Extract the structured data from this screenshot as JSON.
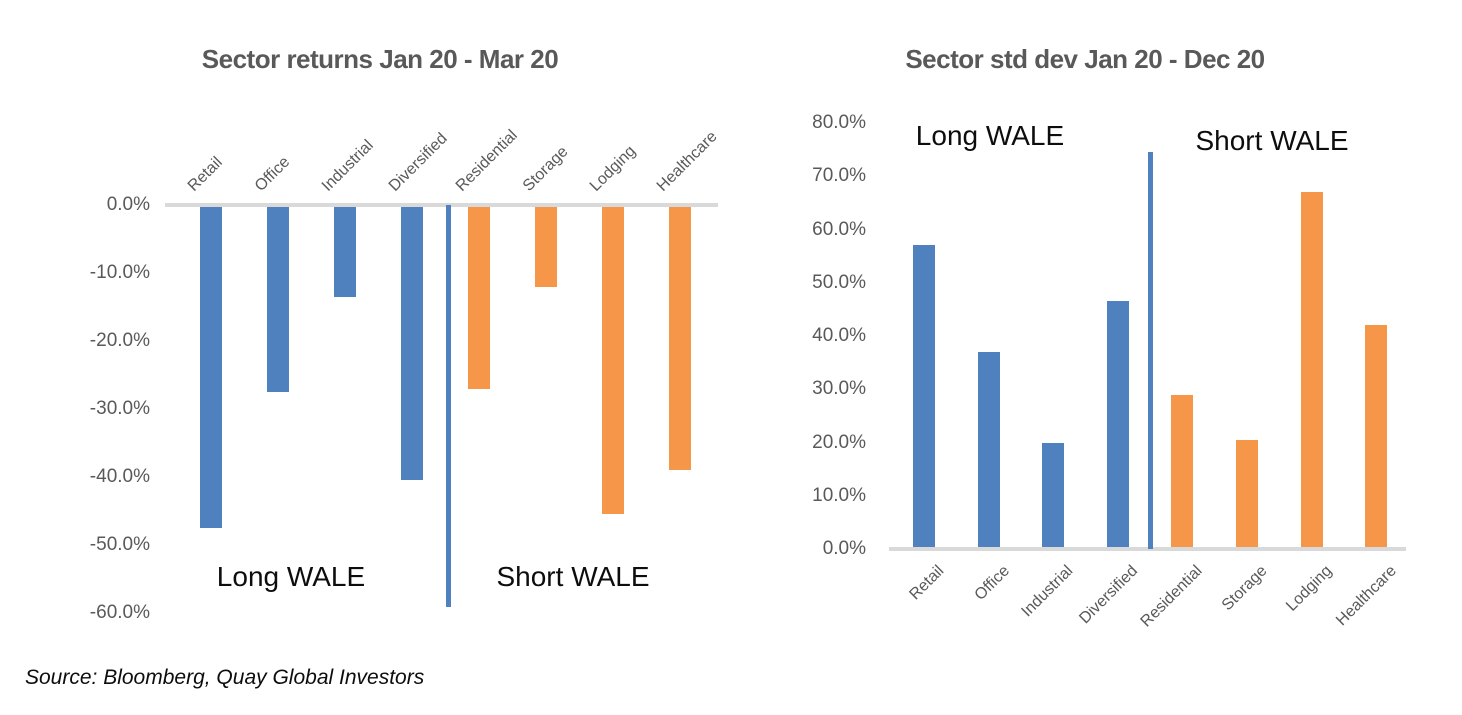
{
  "page": {
    "background": "#FFFFFF"
  },
  "source_note": "Source: Bloomberg, Quay Global Investors",
  "colors": {
    "long_wale_bar": "#4E81BD",
    "short_wale_bar": "#F69648",
    "divider_line": "#4E81BD",
    "axis_line": "#D9D9D9",
    "axis_text": "#595959",
    "title_text": "#595959",
    "annotation_text": "#0D0D0D"
  },
  "chart_data": [
    {
      "id": "returns",
      "type": "bar",
      "title": "Sector returns Jan 20 - Mar 20",
      "categories": [
        "Retail",
        "Office",
        "Industrial",
        "Diversified",
        "Residential",
        "Storage",
        "Lodging",
        "Healthcare"
      ],
      "values": [
        -47.5,
        -27.5,
        -13.5,
        -40.5,
        -27.0,
        -12.0,
        -45.5,
        -39.0
      ],
      "value_unit": "%",
      "ylim": [
        -60,
        0
      ],
      "yticks": [
        "0.0%",
        "-10.0%",
        "-20.0%",
        "-30.0%",
        "-40.0%",
        "-50.0%",
        "-60.0%"
      ],
      "ytick_values": [
        0,
        -10,
        -20,
        -30,
        -40,
        -50,
        -60
      ],
      "grid": false,
      "legend": "none",
      "groups": [
        {
          "label": "Long WALE",
          "categories": [
            "Retail",
            "Office",
            "Industrial",
            "Diversified"
          ],
          "color": "#4E81BD"
        },
        {
          "label": "Short WALE",
          "categories": [
            "Residential",
            "Storage",
            "Lodging",
            "Healthcare"
          ],
          "color": "#F69648"
        }
      ],
      "group_divider_after_category": "Diversified"
    },
    {
      "id": "stddev",
      "type": "bar",
      "title": "Sector std dev Jan 20 - Dec 20",
      "categories": [
        "Retail",
        "Office",
        "Industrial",
        "Diversified",
        "Residential",
        "Storage",
        "Lodging",
        "Healthcare"
      ],
      "values": [
        57.0,
        37.0,
        20.0,
        46.5,
        29.0,
        20.5,
        67.0,
        42.0
      ],
      "value_unit": "%",
      "ylim": [
        0,
        80
      ],
      "yticks": [
        "0.0%",
        "10.0%",
        "20.0%",
        "30.0%",
        "40.0%",
        "50.0%",
        "60.0%",
        "70.0%",
        "80.0%"
      ],
      "ytick_values": [
        0,
        10,
        20,
        30,
        40,
        50,
        60,
        70,
        80
      ],
      "grid": false,
      "legend": "none",
      "groups": [
        {
          "label": "Long WALE",
          "categories": [
            "Retail",
            "Office",
            "Industrial",
            "Diversified"
          ],
          "color": "#4E81BD"
        },
        {
          "label": "Short WALE",
          "categories": [
            "Residential",
            "Storage",
            "Lodging",
            "Healthcare"
          ],
          "color": "#F69648"
        }
      ],
      "group_divider_after_category": "Diversified"
    }
  ]
}
